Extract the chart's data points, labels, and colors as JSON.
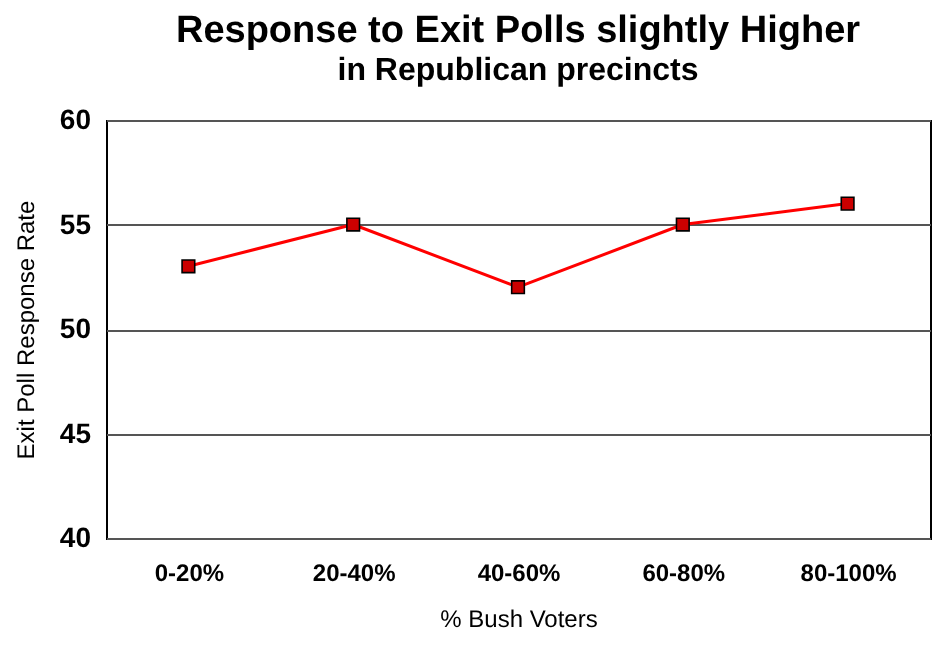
{
  "chart_data": {
    "type": "line",
    "title": "Response to Exit Polls slightly Higher",
    "subtitle": "in Republican precincts",
    "xlabel": "% Bush Voters",
    "ylabel": "Exit Poll Response Rate",
    "categories": [
      "0-20%",
      "20-40%",
      "40-60%",
      "60-80%",
      "80-100%"
    ],
    "series": [
      {
        "color": "#ff0000",
        "values": [
          53,
          55,
          52,
          55,
          56
        ]
      }
    ],
    "ylim": [
      40,
      60
    ],
    "yticks": [
      40,
      45,
      50,
      55,
      60
    ],
    "grid": "y",
    "marker": "square",
    "line_style": "solid",
    "legend": false
  }
}
